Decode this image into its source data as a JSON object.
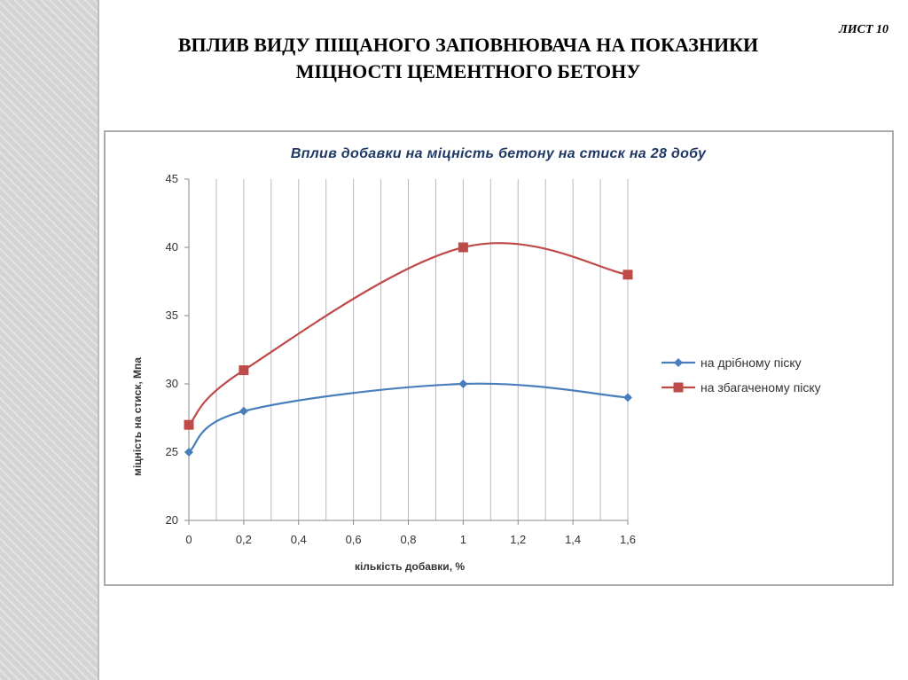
{
  "page": {
    "title_line1": "ВПЛИВ ВИДУ ПІЩАНОГО ЗАПОВНЮВАЧА НА ПОКАЗНИКИ",
    "title_line2": "МІЦНОСТІ ЦЕМЕНТНОГО БЕТОНУ",
    "sheet_label": "ЛИСТ 10"
  },
  "chart_data": {
    "type": "line",
    "title": "Вплив добавки на міцність бетону на стиск на 28 добу",
    "xlabel": "кількість добавки, %",
    "ylabel": "міцність на стиск, Мпа",
    "xlim": [
      0,
      1.6
    ],
    "ylim": [
      20,
      45
    ],
    "x_ticks": [
      "0",
      "0,2",
      "0,4",
      "0,6",
      "0,8",
      "1",
      "1,2",
      "1,4",
      "1,6"
    ],
    "y_ticks": [
      "20",
      "25",
      "30",
      "35",
      "40",
      "45"
    ],
    "grid": "vertical",
    "legend_position": "right",
    "smoothed": true,
    "series": [
      {
        "name": "на дрібному піску",
        "color": "#4a7ebb",
        "marker": "diamond",
        "x": [
          0,
          0.2,
          1,
          1.6
        ],
        "y": [
          25,
          28,
          30,
          29
        ]
      },
      {
        "name": "на збагаченому піску",
        "color": "#be4b48",
        "marker": "square",
        "x": [
          0,
          0.2,
          1,
          1.6
        ],
        "y": [
          27,
          31,
          40,
          38
        ]
      }
    ]
  }
}
